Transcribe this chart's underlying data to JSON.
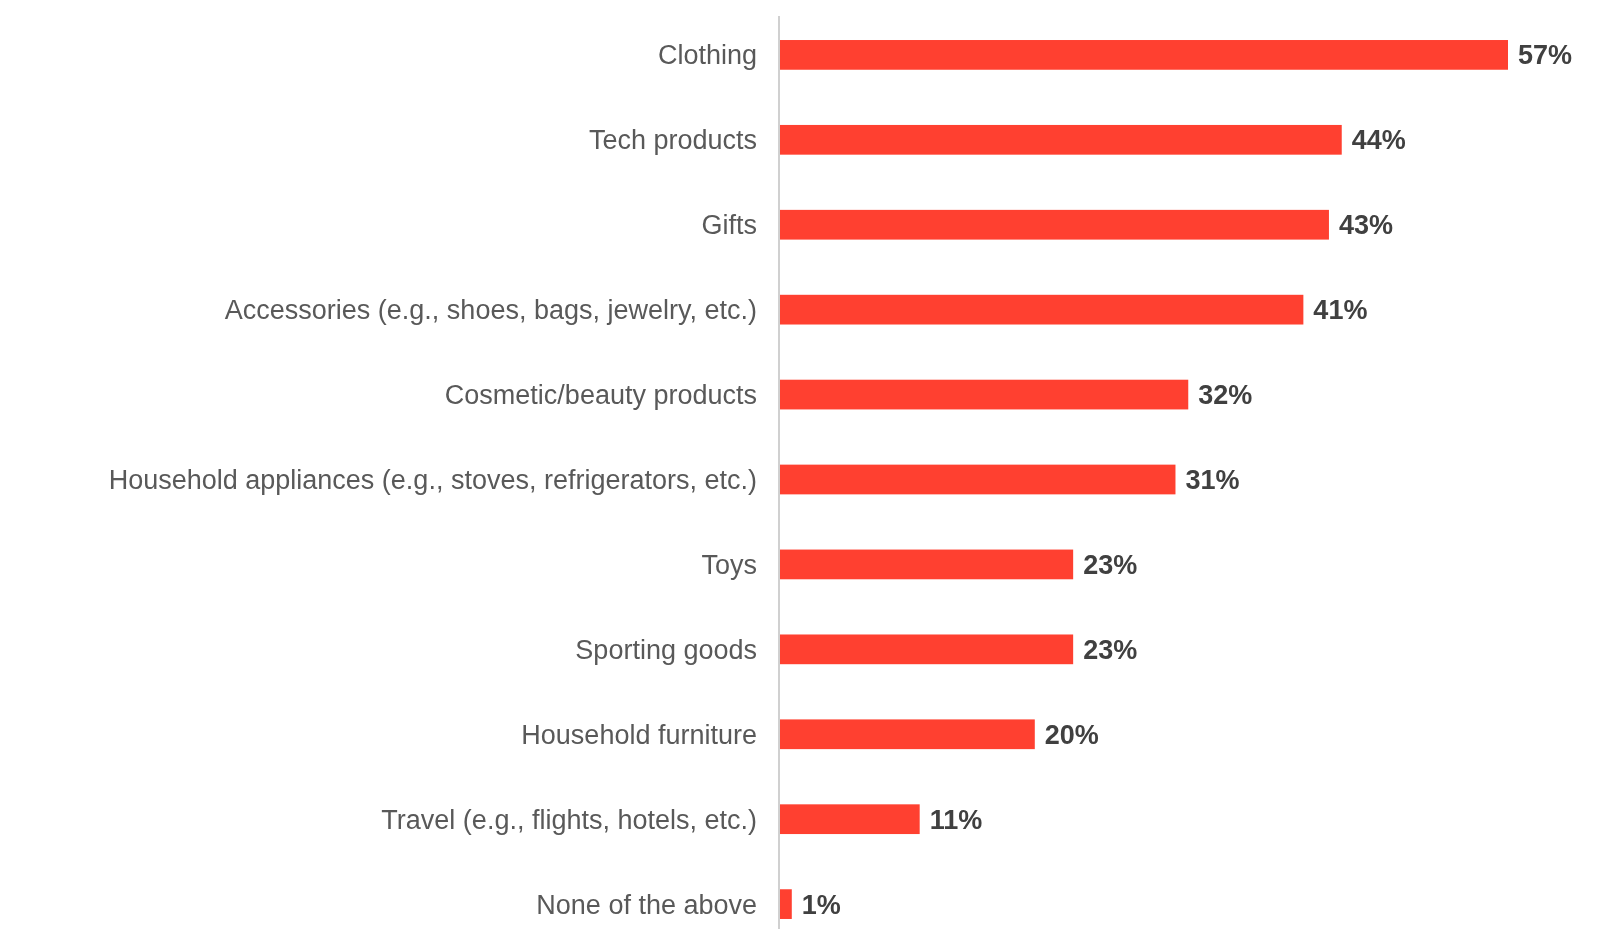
{
  "chart_data": {
    "type": "bar",
    "orientation": "horizontal",
    "categories": [
      "Clothing",
      "Tech products",
      "Gifts",
      "Accessories (e.g., shoes, bags, jewelry, etc.)",
      "Cosmetic/beauty products",
      "Household appliances (e.g., stoves, refrigerators, etc.)",
      "Toys",
      "Sporting goods",
      "Household furniture",
      "Travel (e.g., flights, hotels, etc.)",
      "None of the above"
    ],
    "values": [
      57,
      44,
      43,
      41,
      32,
      31,
      23,
      23,
      20,
      11,
      1
    ],
    "value_labels": [
      "57%",
      "44%",
      "43%",
      "41%",
      "32%",
      "31%",
      "23%",
      "23%",
      "20%",
      "11%",
      "1%"
    ],
    "color": "#ff4030"
  }
}
